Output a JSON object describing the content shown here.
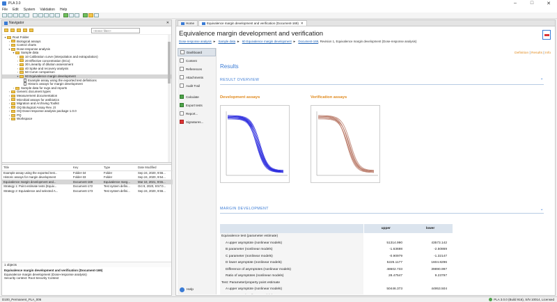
{
  "window": {
    "title": "PLA 3.0",
    "minimize": "–",
    "maximize": "□",
    "close": "✕"
  },
  "menu": [
    "File",
    "Edit",
    "System",
    "Validation",
    "Help"
  ],
  "navigator": {
    "tab_label": "Navigator",
    "filter_placeholder": "<Enter filter>",
    "tree": [
      {
        "level": 0,
        "label": "Root Folder",
        "expanded": true,
        "type": "folder"
      },
      {
        "level": 1,
        "label": "Biological assays",
        "expanded": false,
        "type": "folder"
      },
      {
        "level": 1,
        "label": "Control charts",
        "expanded": false,
        "type": "folder"
      },
      {
        "level": 1,
        "label": "Dose-response analysis",
        "expanded": true,
        "type": "folder"
      },
      {
        "level": 2,
        "label": "Sample data",
        "expanded": true,
        "type": "folder"
      },
      {
        "level": 3,
        "label": "10 Calibration curve (interpolation and extrapolation)",
        "type": "folder"
      },
      {
        "level": 3,
        "label": "20 Effective concentration (ECx)",
        "type": "folder"
      },
      {
        "level": 3,
        "label": "30 Linearity of dilution assessment",
        "type": "folder"
      },
      {
        "level": 3,
        "label": "40 Spike and recovery analysis",
        "type": "folder"
      },
      {
        "level": 3,
        "label": "50 Curve comparison",
        "type": "folder"
      },
      {
        "level": 3,
        "label": "60 Equivalence margin development",
        "expanded": true,
        "type": "folder",
        "selected": true
      },
      {
        "level": 4,
        "label": "Example assay using the exported test definitions",
        "type": "doc"
      },
      {
        "level": 4,
        "label": "Historic assays for margin development",
        "type": "doc"
      },
      {
        "level": 2,
        "label": "Sample data for svgs and reports",
        "expanded": false,
        "type": "folder"
      },
      {
        "level": 1,
        "label": "Generic document types",
        "expanded": false,
        "type": "folder"
      },
      {
        "level": 1,
        "label": "Measurement documentation",
        "expanded": false,
        "type": "folder"
      },
      {
        "level": 1,
        "label": "Microbial assays for antibiotics",
        "expanded": false,
        "type": "folder"
      },
      {
        "level": 1,
        "label": "Migration and Archiving Toolkit",
        "expanded": false,
        "type": "folder"
      },
      {
        "level": 1,
        "label": "OQ Biological Assay Rev. 2t",
        "expanded": false,
        "type": "folder"
      },
      {
        "level": 1,
        "label": "OQ Dose-response analysis package 1.0.0",
        "expanded": false,
        "type": "folder"
      },
      {
        "level": 1,
        "label": "PQ",
        "expanded": false,
        "type": "folder"
      },
      {
        "level": 1,
        "label": "Workspace",
        "expanded": false,
        "type": "folder"
      }
    ],
    "list_headers": [
      "Title",
      "Key",
      "Type",
      "Date Modified"
    ],
    "list_rows": [
      [
        "Example assay using the exported test...",
        "Folder-34",
        "Folder",
        "Sep 24, 2020, 9:55..."
      ],
      [
        "Historic assays for margin development",
        "Folder-33",
        "Folder",
        "Sep 24, 2020, 9:54..."
      ],
      [
        "Equivalence margin development and...",
        "Document-169",
        "Equivalence marg...",
        "Mar 10, 2021, 9:55..."
      ],
      [
        "Strategy 1: Point estimate tests (Equiv...",
        "Document-172",
        "Test system defini...",
        "Oct 9, 2020, 9:57:0..."
      ],
      [
        "Strategy 2: Equivalence and selected A...",
        "Document-173",
        "Test system defini...",
        "Sep 24, 2020, 9:55..."
      ]
    ],
    "selected_row": 2,
    "object_count": "1 objects",
    "details": {
      "title": "Equivalence margin development and verification (Document-169)",
      "line2": "Equivalence margin development (Dose-response analysis)",
      "line3": "Security context: Root Security Context"
    }
  },
  "editor": {
    "tabs": [
      "Home",
      "Equivalence margin development and verification (Document-169)"
    ],
    "title": "Equivalence margin development and verification",
    "breadcrumb": [
      "Dose-response analysis",
      "Sample data",
      "60 Equivalence margin development",
      "Document-169"
    ],
    "breadcrumb_suffix": ", Revision 1, Equivalence margin development (Dose-response analysis)",
    "sidebar": [
      {
        "label": "Dashboard",
        "active": true
      },
      {
        "label": "Content"
      },
      {
        "label": "References"
      },
      {
        "label": "Attachments"
      },
      {
        "label": "Audit Trail"
      },
      {
        "label": "Calculate",
        "gap": true
      },
      {
        "label": "Export tests"
      },
      {
        "label": "Report..."
      },
      {
        "label": "Signatures..."
      }
    ],
    "help_label": "Help",
    "links": {
      "definition": "Definition",
      "results": "Results",
      "info": "Info",
      "sep": "|"
    },
    "results_heading": "Results",
    "result_overview": "RESULT OVERVIEW",
    "dev_title": "Development assays",
    "ver_title": "Verification assays",
    "margin_heading": "MARGIN DEVELOPMENT",
    "margin_table": {
      "headers": [
        "",
        "upper",
        "lower"
      ],
      "rows": [
        {
          "label": "Equivalence test (parameter estimate)",
          "upper": "",
          "lower": "",
          "indent": false
        },
        {
          "label": "A upper asymptote (nonlinear models)",
          "upper": "51314.990",
          "lower": "43573.142",
          "indent": true
        },
        {
          "label": "B parameter (nonlinear models)",
          "upper": "-1.63698",
          "lower": "-2.50869",
          "indent": true
        },
        {
          "label": "C parameter (nonlinear models)",
          "upper": "-0.90979",
          "lower": "-1.32147",
          "indent": true
        },
        {
          "label": "D lower asymptote (nonlinear models)",
          "upper": "5225.1177",
          "lower": "1604.8296",
          "indent": true
        },
        {
          "label": "Difference of asymptotes (nonlinear models)",
          "upper": "48602.733",
          "lower": "39890.997",
          "indent": true
        },
        {
          "label": "Ratio of asymptotes (nonlinear models)",
          "upper": "28.47547",
          "lower": "9.23797",
          "indent": true
        },
        {
          "label": "Test: Parameter/property point estimate",
          "upper": "",
          "lower": "",
          "indent": false
        },
        {
          "label": "A upper asymptote (nonlinear models)",
          "upper": "50446.373",
          "lower": "44953.504",
          "indent": true
        },
        {
          "label": "B parameter (nonlinear models)",
          "upper": "-1.78159",
          "lower": "-2.23247",
          "indent": true
        },
        {
          "label": "C parameter (nonlinear models)",
          "upper": "-0.96003",
          "lower": "-1.25021",
          "indent": true
        }
      ]
    }
  },
  "statusbar": {
    "left": "D100_Permanent_PLA_006",
    "right": "PLA 3.0.0 (Build 916), S/N 10014, Licensed"
  },
  "colors": {
    "accent": "#3a7bd5",
    "orange": "#e08a1e",
    "dev_curve": "#2222dd",
    "ver_curve": "#b06a55"
  }
}
